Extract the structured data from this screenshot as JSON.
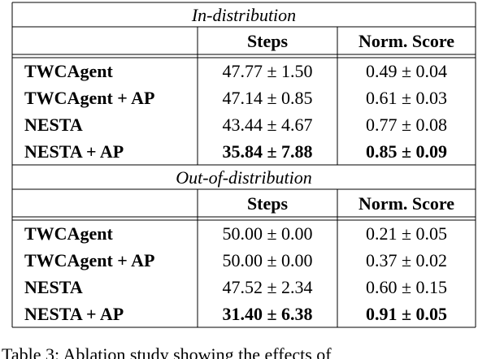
{
  "table": {
    "sections": [
      {
        "title": "In-distribution",
        "columns": [
          "Steps",
          "Norm. Score"
        ],
        "rows": [
          {
            "name": "TWCAgent",
            "steps": "47.77 ± 1.50",
            "score": "0.49 ± 0.04",
            "bold": false
          },
          {
            "name": "TWCAgent + AP",
            "steps": "47.14 ± 0.85",
            "score": "0.61 ± 0.03",
            "bold": false
          },
          {
            "name": "NESTA",
            "steps": "43.44 ± 4.67",
            "score": "0.77 ± 0.08",
            "bold": false
          },
          {
            "name": "NESTA + AP",
            "steps": "35.84 ± 7.88",
            "score": "0.85 ± 0.09",
            "bold": true
          }
        ]
      },
      {
        "title": "Out-of-distribution",
        "columns": [
          "Steps",
          "Norm. Score"
        ],
        "rows": [
          {
            "name": "TWCAgent",
            "steps": "50.00 ± 0.00",
            "score": "0.21 ± 0.05",
            "bold": false
          },
          {
            "name": "TWCAgent + AP",
            "steps": "50.00 ± 0.00",
            "score": "0.37 ± 0.02",
            "bold": false
          },
          {
            "name": "NESTA",
            "steps": "47.52 ± 2.34",
            "score": "0.60 ± 0.15",
            "bold": false
          },
          {
            "name": "NESTA + AP",
            "steps": "31.40 ± 6.38",
            "score": "0.91 ± 0.05",
            "bold": true
          }
        ]
      }
    ]
  },
  "caption": "Table 3: Ablation study showing the effects of"
}
